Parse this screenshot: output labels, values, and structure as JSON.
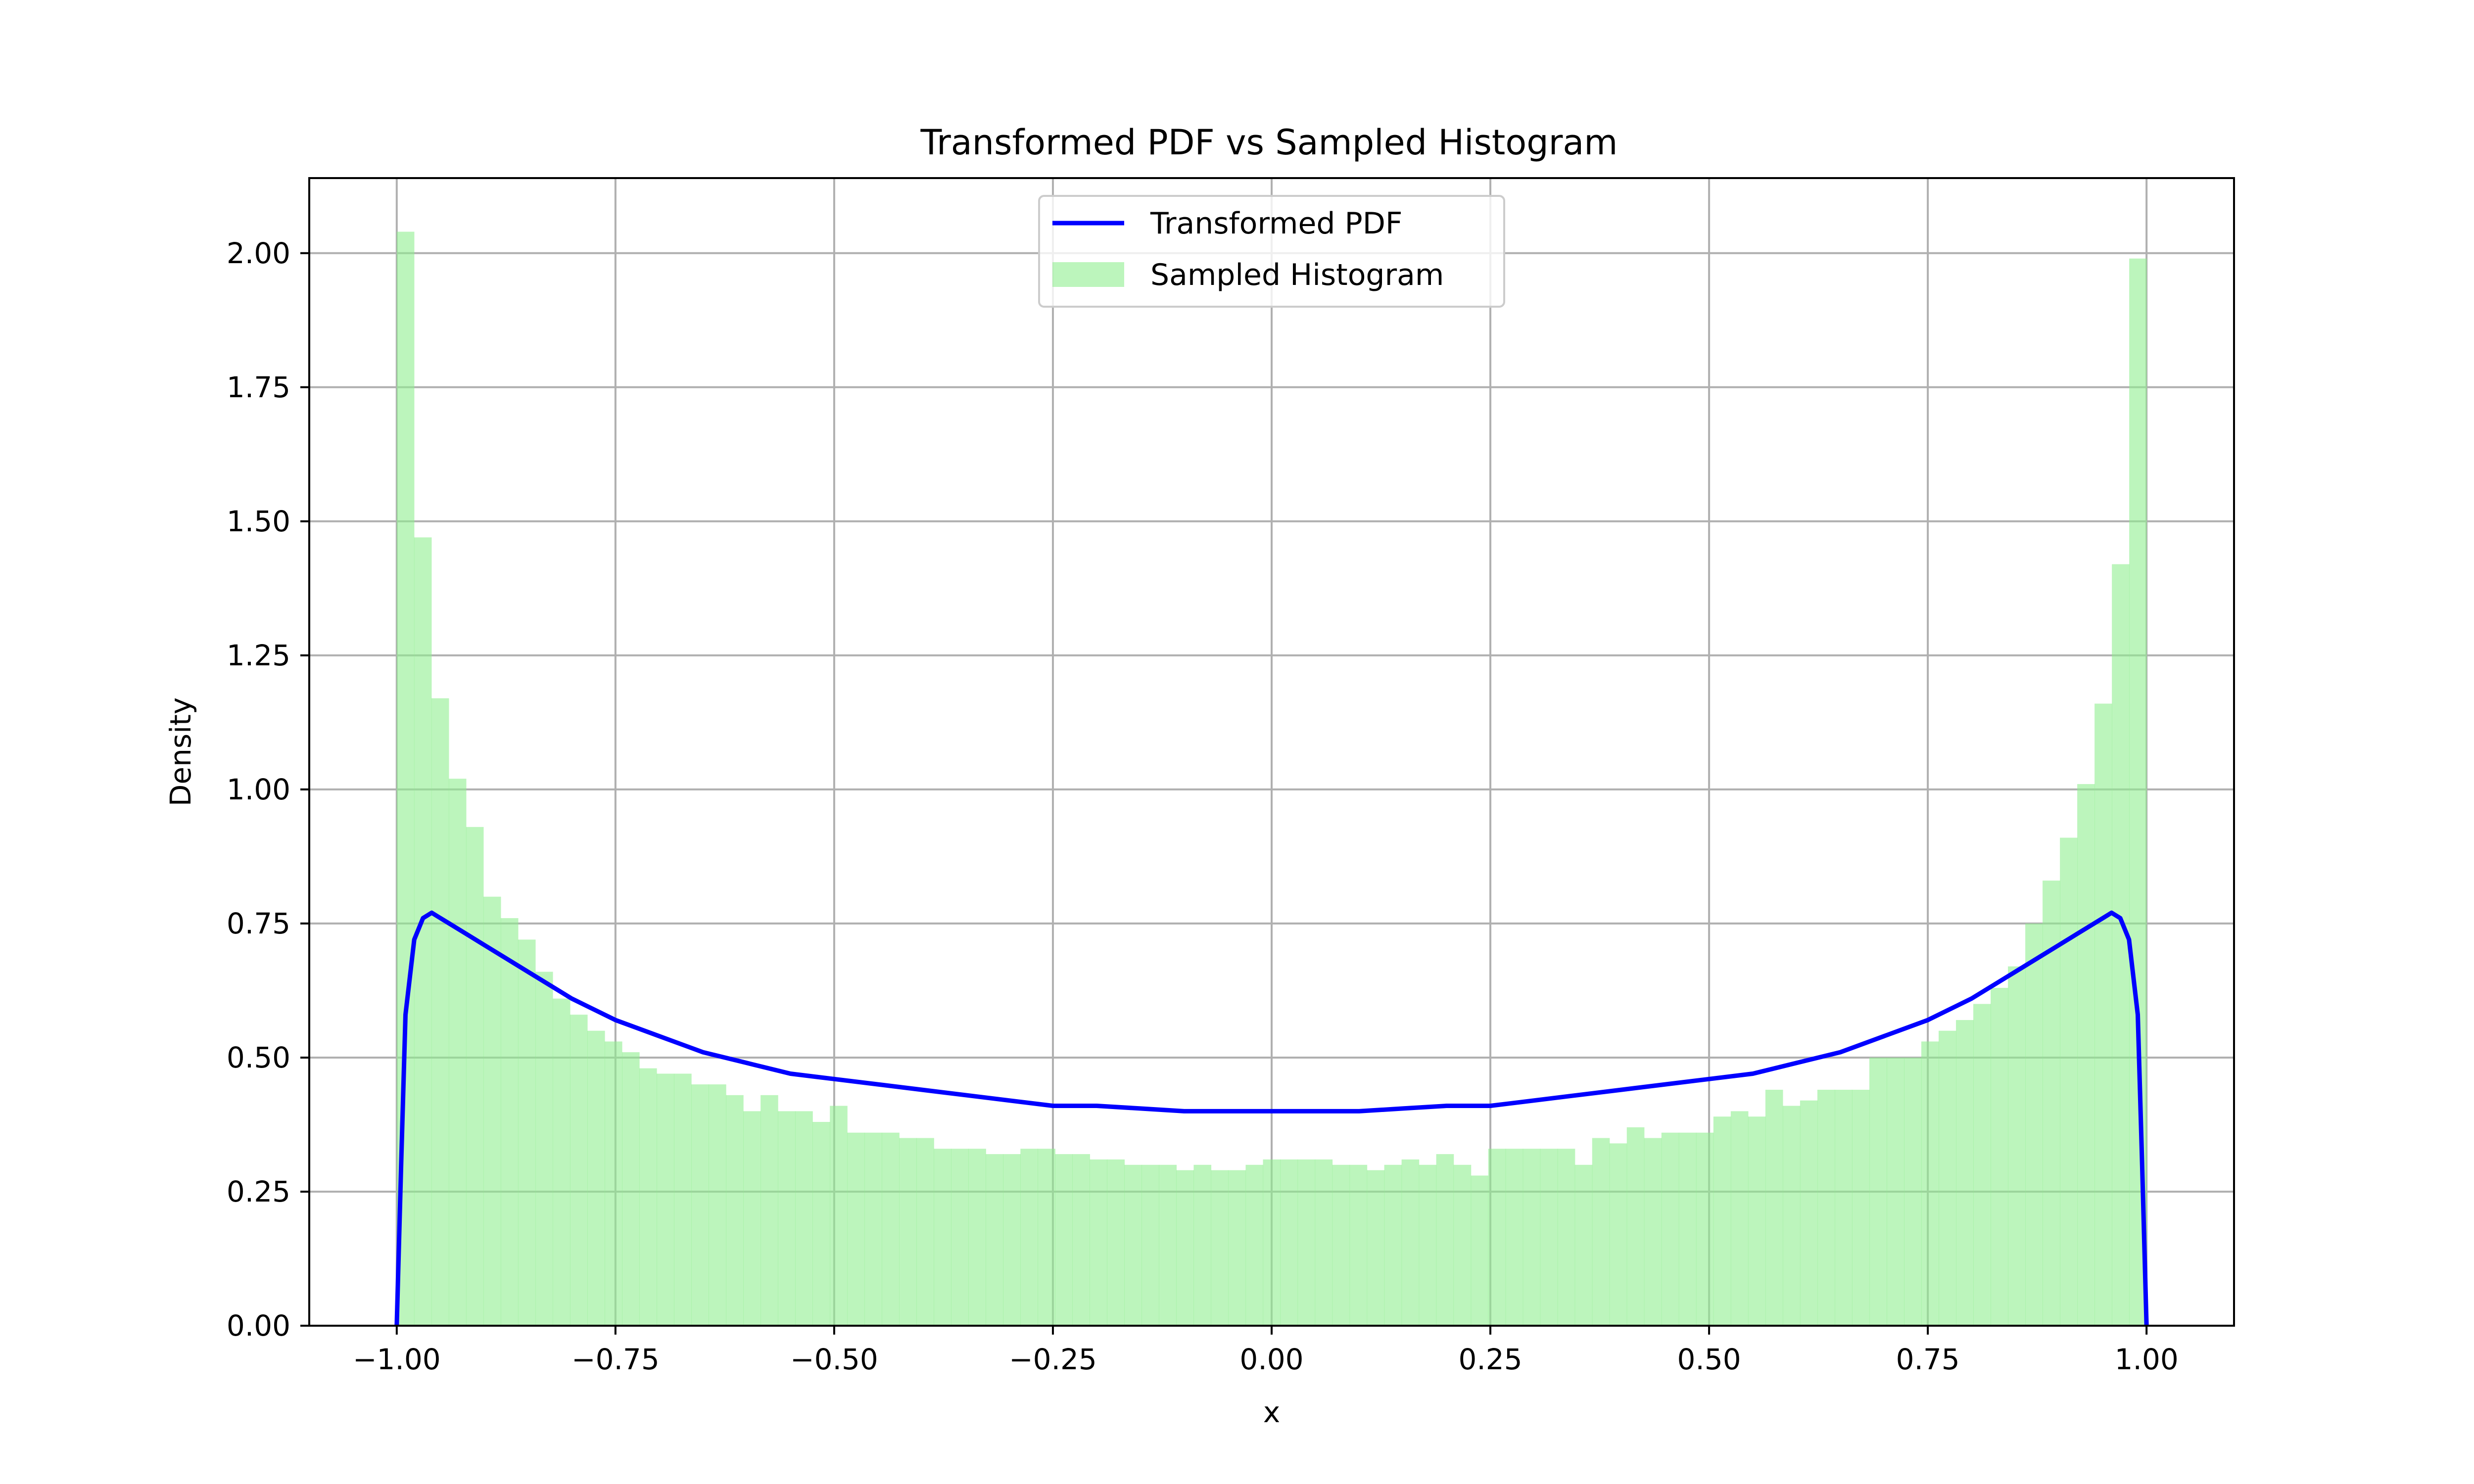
{
  "chart_data": {
    "type": "bar",
    "title": "Transformed PDF vs Sampled Histogram",
    "xlabel": "x",
    "ylabel": "Density",
    "xlim": [
      -1.1,
      1.1
    ],
    "ylim": [
      0,
      2.14
    ],
    "xticks": [
      -1.0,
      -0.75,
      -0.5,
      -0.25,
      0.0,
      0.25,
      0.5,
      0.75,
      1.0
    ],
    "xtick_labels": [
      "−1.00",
      "−0.75",
      "−0.50",
      "−0.25",
      "0.00",
      "0.25",
      "0.50",
      "0.75",
      "1.00"
    ],
    "yticks": [
      0.0,
      0.25,
      0.5,
      0.75,
      1.0,
      1.25,
      1.5,
      1.75,
      2.0
    ],
    "ytick_labels": [
      "0.00",
      "0.25",
      "0.50",
      "0.75",
      "1.00",
      "1.25",
      "1.50",
      "1.75",
      "2.00"
    ],
    "grid": true,
    "legend_position": "top-center",
    "colors": {
      "pdf_line": "#0000ff",
      "histogram": "#90ee90"
    },
    "histogram": {
      "name": "Sampled Histogram",
      "bin_start": -1.0,
      "bin_end": 1.0,
      "values": [
        2.04,
        1.47,
        1.17,
        1.02,
        0.93,
        0.8,
        0.76,
        0.72,
        0.66,
        0.61,
        0.58,
        0.55,
        0.53,
        0.51,
        0.48,
        0.47,
        0.47,
        0.45,
        0.45,
        0.43,
        0.4,
        0.43,
        0.4,
        0.4,
        0.38,
        0.41,
        0.36,
        0.36,
        0.36,
        0.35,
        0.35,
        0.33,
        0.33,
        0.33,
        0.32,
        0.32,
        0.33,
        0.33,
        0.32,
        0.32,
        0.31,
        0.31,
        0.3,
        0.3,
        0.3,
        0.29,
        0.3,
        0.29,
        0.29,
        0.3,
        0.31,
        0.31,
        0.31,
        0.31,
        0.3,
        0.3,
        0.29,
        0.3,
        0.31,
        0.3,
        0.32,
        0.3,
        0.28,
        0.33,
        0.33,
        0.33,
        0.33,
        0.33,
        0.3,
        0.35,
        0.34,
        0.37,
        0.35,
        0.36,
        0.36,
        0.36,
        0.39,
        0.4,
        0.39,
        0.44,
        0.41,
        0.42,
        0.44,
        0.44,
        0.44,
        0.5,
        0.5,
        0.5,
        0.53,
        0.55,
        0.57,
        0.6,
        0.63,
        0.67,
        0.75,
        0.83,
        0.91,
        1.01,
        1.16,
        1.42,
        1.99
      ]
    },
    "series": [
      {
        "name": "Transformed PDF",
        "x": [
          -1.0,
          -0.995,
          -0.99,
          -0.98,
          -0.97,
          -0.96,
          -0.95,
          -0.94,
          -0.92,
          -0.9,
          -0.88,
          -0.85,
          -0.8,
          -0.75,
          -0.7,
          -0.65,
          -0.6,
          -0.55,
          -0.5,
          -0.45,
          -0.4,
          -0.35,
          -0.3,
          -0.25,
          -0.2,
          -0.15,
          -0.1,
          -0.05,
          0.0,
          0.05,
          0.1,
          0.15,
          0.2,
          0.25,
          0.3,
          0.35,
          0.4,
          0.45,
          0.5,
          0.55,
          0.6,
          0.65,
          0.7,
          0.75,
          0.8,
          0.85,
          0.88,
          0.9,
          0.92,
          0.94,
          0.95,
          0.96,
          0.97,
          0.98,
          0.99,
          0.995,
          1.0
        ],
        "y": [
          0.0,
          0.3,
          0.58,
          0.72,
          0.76,
          0.77,
          0.76,
          0.75,
          0.73,
          0.71,
          0.69,
          0.66,
          0.61,
          0.57,
          0.54,
          0.51,
          0.49,
          0.47,
          0.46,
          0.45,
          0.44,
          0.43,
          0.42,
          0.41,
          0.41,
          0.405,
          0.4,
          0.4,
          0.4,
          0.4,
          0.4,
          0.405,
          0.41,
          0.41,
          0.42,
          0.43,
          0.44,
          0.45,
          0.46,
          0.47,
          0.49,
          0.51,
          0.54,
          0.57,
          0.61,
          0.66,
          0.69,
          0.71,
          0.73,
          0.75,
          0.76,
          0.77,
          0.76,
          0.72,
          0.58,
          0.3,
          0.0
        ]
      }
    ]
  }
}
